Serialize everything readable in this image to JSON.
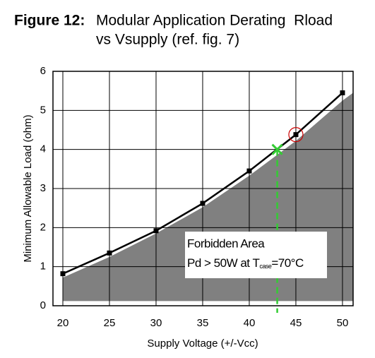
{
  "chart_data": {
    "type": "line",
    "title_label": "Figure 12:",
    "title": "Modular Application Derating  Rload",
    "subtitle": "vs Vsupply (ref. fig. 7)",
    "x_label": "Supply Voltage (+/-Vcc)",
    "y_label": "Minimum Allowable Load (ohm)",
    "xlim": [
      18.94,
      51.14
    ],
    "xticks": [
      20,
      25,
      30,
      35,
      40,
      45,
      50
    ],
    "ylim": [
      0,
      6
    ],
    "yticks": [
      0,
      1,
      2,
      3,
      4,
      5,
      6
    ],
    "grid": true,
    "series": [
      {
        "color": "#000000",
        "x": [
          20,
          25,
          30,
          35,
          40,
          45,
          50
        ],
        "values": [
          0.82,
          1.35,
          1.92,
          2.62,
          3.45,
          4.38,
          5.45
        ]
      }
    ],
    "area": {
      "color": "#808080",
      "x": [
        20,
        25,
        30,
        35,
        40,
        45,
        50,
        51.14
      ],
      "upper": [
        0.72,
        1.25,
        1.85,
        2.52,
        3.33,
        4.22,
        5.25,
        5.45
      ],
      "lower": [
        0.12,
        0.12,
        0.12,
        0.12,
        0.12,
        0.12,
        0.12,
        0.12
      ]
    },
    "marker": {
      "x": 43,
      "y": 4.0,
      "color": "#33cc33"
    },
    "highlight": {
      "x": 45,
      "y": 4.38,
      "color": "#cc0000"
    },
    "annotation": {
      "line1": "Forbidden Area",
      "line2": "Pd > 50W at T",
      "subscript": "case",
      "line2_end": "=70°C"
    }
  }
}
